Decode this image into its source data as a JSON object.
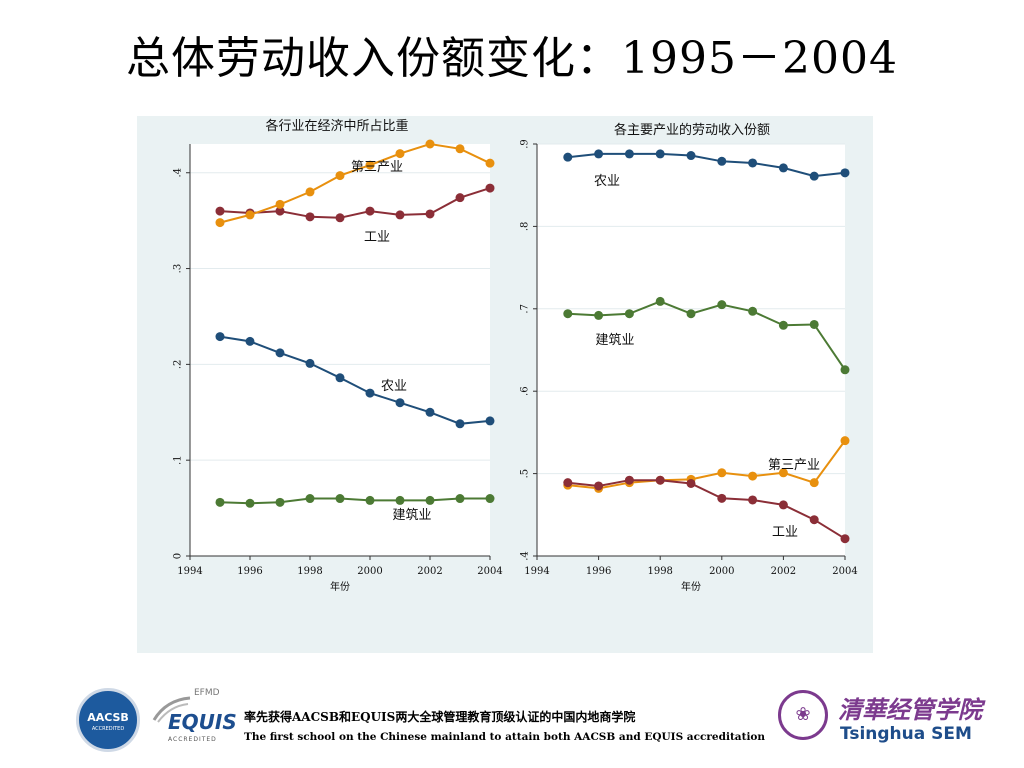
{
  "slide": {
    "title": "总体劳动收入份额变化：1995－2004"
  },
  "colors": {
    "agriculture": "#1f4e79",
    "industry": "#8b2e37",
    "construction": "#4c7a34",
    "services": "#e8900e",
    "plot_bg": "#ffffff",
    "outer_bg": "#eaf2f3",
    "grid": "#e3ebee"
  },
  "chart_data": [
    {
      "type": "line",
      "title": "各行业在经济中所占比重",
      "xlabel": "年份",
      "ylabel": "",
      "x": [
        1995,
        1996,
        1997,
        1998,
        1999,
        2000,
        2001,
        2002,
        2003,
        2004
      ],
      "xlim": [
        1994,
        2004
      ],
      "xticks": [
        1994,
        1996,
        1998,
        2000,
        2002,
        2004
      ],
      "ylim": [
        0,
        0.43
      ],
      "yticks": [
        0,
        0.1,
        0.2,
        0.3,
        0.4
      ],
      "ytick_labels": [
        "0",
        ".1",
        ".2",
        ".3",
        ".4"
      ],
      "grid": true,
      "series": [
        {
          "key": "agriculture",
          "name": "农业",
          "color": "#1f4e79",
          "values": [
            0.229,
            0.224,
            0.212,
            0.201,
            0.186,
            0.17,
            0.16,
            0.15,
            0.138,
            0.141
          ]
        },
        {
          "key": "industry",
          "name": "工业",
          "color": "#8b2e37",
          "values": [
            0.36,
            0.358,
            0.36,
            0.354,
            0.353,
            0.36,
            0.356,
            0.357,
            0.374,
            0.384
          ]
        },
        {
          "key": "construction",
          "name": "建筑业",
          "color": "#4c7a34",
          "values": [
            0.056,
            0.055,
            0.056,
            0.06,
            0.06,
            0.058,
            0.058,
            0.058,
            0.06,
            0.06
          ]
        },
        {
          "key": "services",
          "name": "第三产业",
          "color": "#e8900e",
          "values": [
            0.348,
            0.356,
            0.367,
            0.38,
            0.397,
            0.408,
            0.42,
            0.43,
            0.425,
            0.41
          ]
        }
      ]
    },
    {
      "type": "line",
      "title": "各主要产业的劳动收入份额",
      "xlabel": "年份",
      "ylabel": "",
      "x": [
        1995,
        1996,
        1997,
        1998,
        1999,
        2000,
        2001,
        2002,
        2003,
        2004
      ],
      "xlim": [
        1994,
        2004
      ],
      "xticks": [
        1994,
        1996,
        1998,
        2000,
        2002,
        2004
      ],
      "ylim": [
        0.4,
        0.9
      ],
      "yticks": [
        0.4,
        0.5,
        0.6,
        0.7,
        0.8,
        0.9
      ],
      "ytick_labels": [
        ".4",
        ".5",
        ".6",
        ".7",
        ".8",
        ".9"
      ],
      "grid": true,
      "series": [
        {
          "key": "agriculture",
          "name": "农业",
          "color": "#1f4e79",
          "values": [
            0.884,
            0.888,
            0.888,
            0.888,
            0.886,
            0.879,
            0.877,
            0.871,
            0.861,
            0.865
          ]
        },
        {
          "key": "construction",
          "name": "建筑业",
          "color": "#4c7a34",
          "values": [
            0.694,
            0.692,
            0.694,
            0.709,
            0.694,
            0.705,
            0.697,
            0.68,
            0.681,
            0.626
          ]
        },
        {
          "key": "services",
          "name": "第三产业",
          "color": "#e8900e",
          "values": [
            0.486,
            0.482,
            0.489,
            0.492,
            0.493,
            0.501,
            0.497,
            0.501,
            0.489,
            0.54
          ]
        },
        {
          "key": "industry",
          "name": "工业",
          "color": "#8b2e37",
          "values": [
            0.489,
            0.485,
            0.492,
            0.492,
            0.488,
            0.47,
            0.468,
            0.462,
            0.444,
            0.421
          ]
        }
      ]
    }
  ],
  "footer": {
    "line1": "率先获得AACSB和EQUIS两大全球管理教育顶级认证的中国内地商学院",
    "line2": "The first school on the Chinese  mainland to attain both AACSB and EQUIS accreditation",
    "aacsb_name": "AACSB",
    "aacsb_sub": "ACCREDITED",
    "efmd_label": "EFMD",
    "equis_label": "EQUIS",
    "equis_sub": "ACCREDITED",
    "tsinghua_cn": "清華经管学院",
    "tsinghua_en": "Tsinghua SEM"
  }
}
